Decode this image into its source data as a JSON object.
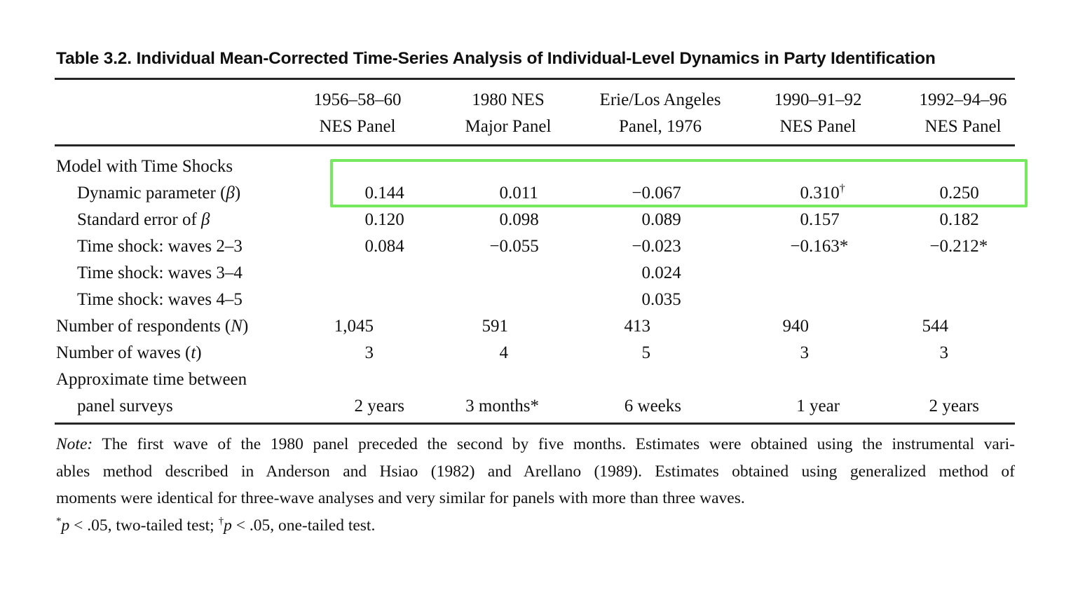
{
  "title": "Table 3.2. Individual Mean-Corrected Time-Series Analysis of Individual-Level Dynamics in Party Identification",
  "highlight": {
    "color": "#74e95e",
    "row": "Dynamic parameter (β)"
  },
  "columns": [
    {
      "line1": "1956–58–60",
      "line2": "NES Panel"
    },
    {
      "line1": "1980 NES",
      "line2": "Major Panel"
    },
    {
      "line1": "Erie/Los Angeles",
      "line2": "Panel, 1976"
    },
    {
      "line1": "1990–91–92",
      "line2": "NES Panel"
    },
    {
      "line1": "1992–94–96",
      "line2": "NES Panel"
    }
  ],
  "rows": [
    {
      "label": [
        {
          "t": "Model with Time Shocks"
        }
      ],
      "indent": false,
      "cells": [
        null,
        null,
        null,
        null,
        null
      ]
    },
    {
      "label": [
        {
          "t": "Dynamic parameter ("
        },
        {
          "t": "β",
          "s": "i"
        },
        {
          "t": ")"
        }
      ],
      "indent": true,
      "highlighted": true,
      "cells": [
        {
          "ip": "0",
          "fp": ".144"
        },
        {
          "ip": "0",
          "fp": ".011"
        },
        {
          "ip": "−0",
          "fp": ".067"
        },
        {
          "ip": "0",
          "fp": ".310",
          "sup": "†"
        },
        {
          "ip": "0",
          "fp": ".250"
        }
      ]
    },
    {
      "label": [
        {
          "t": "Standard error of "
        },
        {
          "t": "β",
          "s": "i"
        }
      ],
      "indent": true,
      "cells": [
        {
          "ip": "0",
          "fp": ".120"
        },
        {
          "ip": "0",
          "fp": ".098"
        },
        {
          "ip": "0",
          "fp": ".089"
        },
        {
          "ip": "0",
          "fp": ".157"
        },
        {
          "ip": "0",
          "fp": ".182"
        }
      ]
    },
    {
      "label": [
        {
          "t": "Time shock: waves 2–3"
        }
      ],
      "indent": true,
      "cells": [
        {
          "ip": "0",
          "fp": ".084"
        },
        {
          "ip": "−0",
          "fp": ".055"
        },
        {
          "ip": "−0",
          "fp": ".023"
        },
        {
          "ip": "−0",
          "fp": ".163*"
        },
        {
          "ip": "−0",
          "fp": ".212*"
        }
      ]
    },
    {
      "label": [
        {
          "t": "Time shock: waves 3–4"
        }
      ],
      "indent": true,
      "cells": [
        null,
        null,
        {
          "ip": "0",
          "fp": ".024"
        },
        null,
        null
      ]
    },
    {
      "label": [
        {
          "t": "Time shock: waves 4–5"
        }
      ],
      "indent": true,
      "cells": [
        null,
        null,
        {
          "ip": "0",
          "fp": ".035"
        },
        null,
        null
      ]
    },
    {
      "label": [
        {
          "t": "Number of respondents ("
        },
        {
          "t": "N",
          "s": "i"
        },
        {
          "t": ")"
        }
      ],
      "indent": false,
      "cells": [
        {
          "ip": "1,045"
        },
        {
          "ip": "591"
        },
        {
          "ip": "413"
        },
        {
          "ip": "940"
        },
        {
          "ip": "544"
        }
      ]
    },
    {
      "label": [
        {
          "t": "Number of waves ("
        },
        {
          "t": "t",
          "s": "i"
        },
        {
          "t": ")"
        }
      ],
      "indent": false,
      "cells": [
        {
          "ip": "3"
        },
        {
          "ip": "4"
        },
        {
          "ip": "5"
        },
        {
          "ip": "3"
        },
        {
          "ip": "3"
        }
      ]
    },
    {
      "label": [
        {
          "t": "Approximate time between"
        }
      ],
      "indent": false,
      "cells": [
        null,
        null,
        null,
        null,
        null
      ]
    },
    {
      "label": [
        {
          "t": "panel surveys"
        }
      ],
      "indent": true,
      "cells": [
        {
          "dur": "2 years"
        },
        {
          "dur": "3 months*"
        },
        {
          "dur": "6 weeks"
        },
        {
          "dur": "1 year"
        },
        {
          "dur": "2 years"
        }
      ]
    }
  ],
  "note": {
    "lines": [
      {
        "justify": true,
        "segs": [
          {
            "t": "Note:",
            "s": "i"
          },
          {
            "t": " The first wave of the 1980 panel preceded the second by five months. Estimates were obtained using the instrumental vari-"
          }
        ]
      },
      {
        "justify": true,
        "segs": [
          {
            "t": "ables method described in Anderson and Hsiao (1982) and Arellano (1989). Estimates obtained using generalized method of"
          }
        ]
      },
      {
        "justify": false,
        "segs": [
          {
            "t": "moments were identical for three-wave analyses and very similar for panels with more than three waves."
          }
        ]
      },
      {
        "justify": false,
        "segs": [
          {
            "t": "*",
            "s": "sup"
          },
          {
            "t": "p",
            "s": "i"
          },
          {
            "t": " < .05, two-tailed test; "
          },
          {
            "t": "†",
            "s": "sup"
          },
          {
            "t": "p",
            "s": "i"
          },
          {
            "t": " < .05, one-tailed test."
          }
        ]
      }
    ]
  }
}
